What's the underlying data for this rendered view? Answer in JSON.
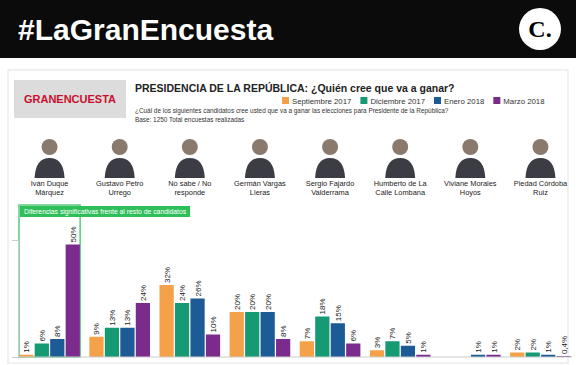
{
  "header": {
    "hashtag": "#LaGranEncuesta",
    "logo": "C.",
    "badge": "GRANENCUESTA"
  },
  "chart_data": {
    "type": "bar",
    "title": "PRESIDENCIA DE LA REPÚBLICA: ¿Quién cree que va a ganar?",
    "subtitle": "¿Cuál de los siguientes candidatos cree usted que va a ganar las elecciones para Presidente de la República?",
    "note": "Base: 1250 Total encuestas realizadas",
    "categories": [
      "Iván Duque Márquez",
      "Gustavo Petro Urrego",
      "No sabe / No responde",
      "Germán Vargas Lleras",
      "Sergio Fajardo Valderrama",
      "Humberto de La Calle Lombana",
      "Viviane Morales Hoyos",
      "Piedad Córdoba Ruiz"
    ],
    "series": [
      {
        "name": "Septiembre 2017",
        "color": "#f4a14a",
        "values": [
          1,
          9,
          32,
          20,
          7,
          3,
          null,
          2
        ],
        "value_labels": [
          "1%",
          "9%",
          "32%",
          "20%",
          "7%",
          "3%",
          null,
          "2%"
        ]
      },
      {
        "name": "Diciembre 2017",
        "color": "#159a74",
        "values": [
          6,
          13,
          24,
          20,
          18,
          7,
          null,
          2
        ],
        "value_labels": [
          "6%",
          "13%",
          "24%",
          "20%",
          "18%",
          "7%",
          null,
          "2%"
        ]
      },
      {
        "name": "Enero 2018",
        "color": "#1d5b96",
        "values": [
          8,
          13,
          26,
          20,
          15,
          5,
          1,
          1
        ],
        "value_labels": [
          "8%",
          "13%",
          "26%",
          "20%",
          "15%",
          "5%",
          "1%",
          "1%"
        ]
      },
      {
        "name": "Marzo 2018",
        "color": "#7a2b8c",
        "values": [
          50,
          24,
          10,
          8,
          6,
          1,
          1,
          0.4
        ],
        "value_labels": [
          "50%",
          "24%",
          "10%",
          "8%",
          "6%",
          "1%",
          "1%",
          "0,4%"
        ]
      }
    ],
    "annotation": {
      "text": "Diferencias significativas frente al resto de candidatos",
      "category": "Iván Duque Márquez"
    },
    "ylim": [
      0,
      52
    ],
    "yticks": [],
    "tick_labels": false,
    "data_labels": true,
    "legend": "top",
    "grid": false
  }
}
